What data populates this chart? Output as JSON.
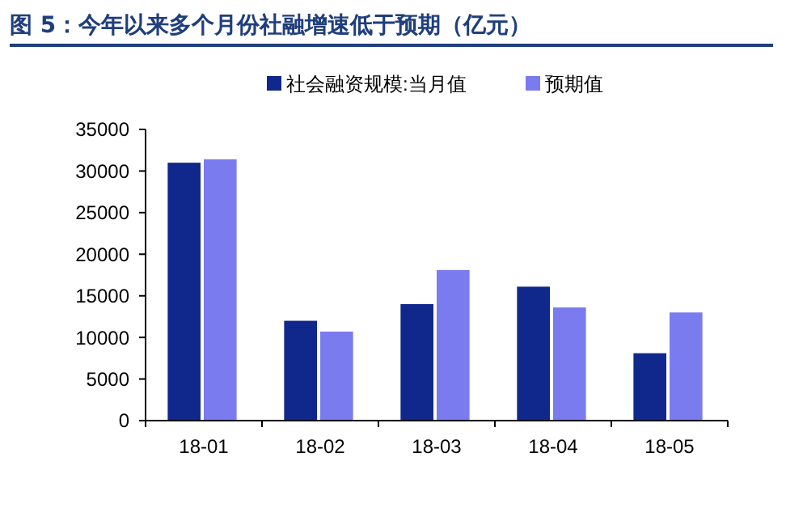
{
  "chart_data": {
    "type": "bar",
    "title": "图 5：今年以来多个月份社融增速低于预期（亿元）",
    "categories": [
      "18-01",
      "18-02",
      "18-03",
      "18-04",
      "18-05"
    ],
    "series": [
      {
        "name": "社会融资规模:当月值",
        "color": "#10288c",
        "values": [
          31000,
          12000,
          14000,
          16100,
          8100
        ]
      },
      {
        "name": "预期值",
        "color": "#7b7bf0",
        "values": [
          31400,
          10700,
          18100,
          13600,
          13000
        ]
      }
    ],
    "ylim": [
      0,
      35000
    ],
    "yticks": [
      0,
      5000,
      10000,
      15000,
      20000,
      25000,
      30000,
      35000
    ],
    "grid": false,
    "legend": "top"
  }
}
